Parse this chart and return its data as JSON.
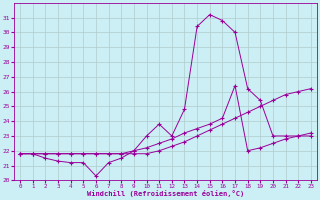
{
  "xlabel": "Windchill (Refroidissement éolien,°C)",
  "bg_color": "#cceef5",
  "line_color": "#990099",
  "grid_color": "#b0cccc",
  "xlim": [
    -0.5,
    23.5
  ],
  "ylim": [
    20,
    32
  ],
  "yticks": [
    20,
    21,
    22,
    23,
    24,
    25,
    26,
    27,
    28,
    29,
    30,
    31
  ],
  "xticks": [
    0,
    1,
    2,
    3,
    4,
    5,
    6,
    7,
    8,
    9,
    10,
    11,
    12,
    13,
    14,
    15,
    16,
    17,
    18,
    19,
    20,
    21,
    22,
    23
  ],
  "series1_x": [
    0,
    1,
    2,
    3,
    4,
    5,
    6,
    7,
    8,
    9,
    10,
    11,
    12,
    13,
    14,
    15,
    16,
    17,
    18,
    19,
    20,
    21,
    22,
    23
  ],
  "series1_y": [
    21.8,
    21.8,
    21.5,
    21.3,
    21.2,
    21.2,
    20.3,
    21.2,
    21.5,
    22.0,
    23.0,
    23.8,
    23.0,
    24.8,
    30.4,
    31.2,
    30.8,
    30.0,
    26.2,
    25.4,
    23.0,
    23.0,
    23.0,
    23.0
  ],
  "series2_x": [
    0,
    1,
    2,
    3,
    4,
    5,
    6,
    7,
    8,
    9,
    10,
    11,
    12,
    13,
    14,
    15,
    16,
    17,
    18,
    19,
    20,
    21,
    22,
    23
  ],
  "series2_y": [
    21.8,
    21.8,
    21.8,
    21.8,
    21.8,
    21.8,
    21.8,
    21.8,
    21.8,
    22.0,
    22.2,
    22.5,
    22.8,
    23.2,
    23.5,
    23.8,
    24.2,
    26.4,
    22.0,
    22.2,
    22.5,
    22.8,
    23.0,
    23.2
  ],
  "series3_x": [
    0,
    1,
    2,
    3,
    4,
    5,
    6,
    7,
    8,
    9,
    10,
    11,
    12,
    13,
    14,
    15,
    16,
    17,
    18,
    19,
    20,
    21,
    22,
    23
  ],
  "series3_y": [
    21.8,
    21.8,
    21.8,
    21.8,
    21.8,
    21.8,
    21.8,
    21.8,
    21.8,
    21.8,
    21.8,
    22.0,
    22.3,
    22.6,
    23.0,
    23.4,
    23.8,
    24.2,
    24.6,
    25.0,
    25.4,
    25.8,
    26.0,
    26.2
  ]
}
